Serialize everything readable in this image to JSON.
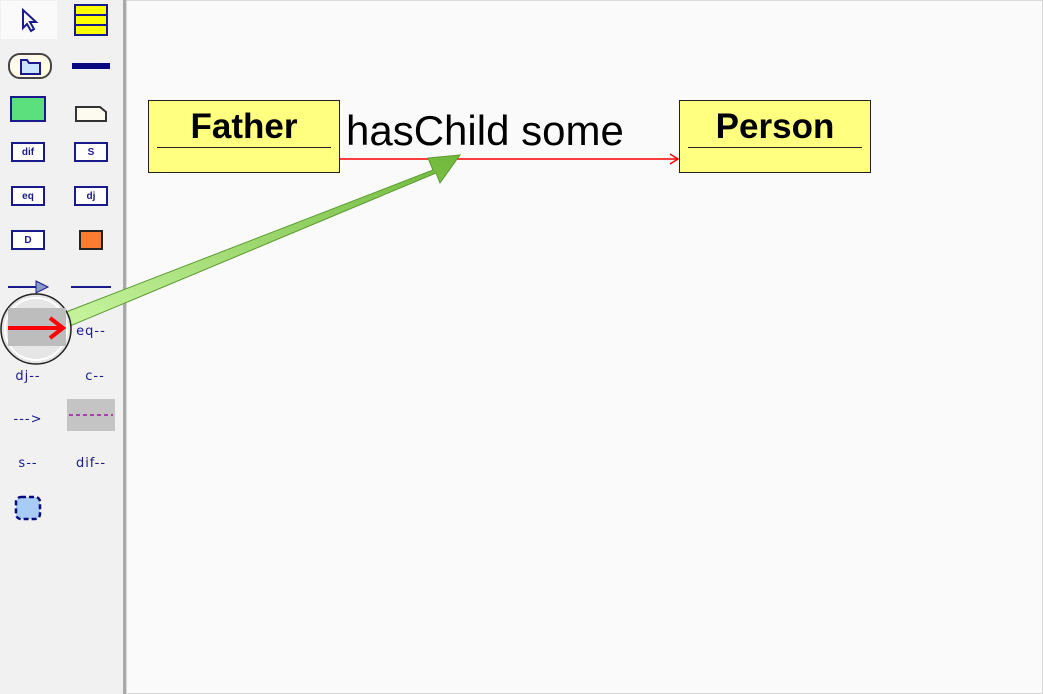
{
  "toolbar": {
    "tools": [
      {
        "id": "select",
        "icon": "cursor-arrow-icon"
      },
      {
        "id": "class",
        "icon": "class-box-icon"
      },
      {
        "id": "package",
        "icon": "folder-icon"
      },
      {
        "id": "line",
        "icon": "thick-line-icon"
      },
      {
        "id": "rectangle",
        "icon": "green-rectangle-icon"
      },
      {
        "id": "note",
        "icon": "note-icon"
      },
      {
        "id": "dif",
        "icon": "note-icon",
        "label": "dif"
      },
      {
        "id": "s",
        "icon": "note-icon",
        "label": "S"
      },
      {
        "id": "eq",
        "icon": "note-icon",
        "label": "eq"
      },
      {
        "id": "dj",
        "icon": "note-icon",
        "label": "dj"
      },
      {
        "id": "D",
        "icon": "box-icon",
        "label": "D"
      },
      {
        "id": "orange",
        "icon": "orange-square-icon"
      },
      {
        "id": "generalization",
        "icon": "triangle-arrow-icon"
      },
      {
        "id": "association",
        "icon": "plain-line-icon"
      },
      {
        "id": "directed-association",
        "icon": "red-arrow-icon",
        "selected": true
      },
      {
        "id": "eq-link",
        "label": "eq--"
      },
      {
        "id": "dj-link",
        "label": "dj--"
      },
      {
        "id": "c-link",
        "label": "c--"
      },
      {
        "id": "dependency",
        "label": "--->"
      },
      {
        "id": "dashed-purple",
        "icon": "dashed-line-icon"
      },
      {
        "id": "s-link",
        "label": "s--"
      },
      {
        "id": "dif-link",
        "label": "dif--"
      },
      {
        "id": "boundary",
        "icon": "dashed-rounded-box-icon"
      }
    ]
  },
  "diagram": {
    "source_class": "Father",
    "target_class": "Person",
    "relation_label": "hasChild some"
  },
  "colors": {
    "class_fill": "#ffff80",
    "relation": "#ff0000",
    "highlight_arrow": "#8cc850"
  }
}
